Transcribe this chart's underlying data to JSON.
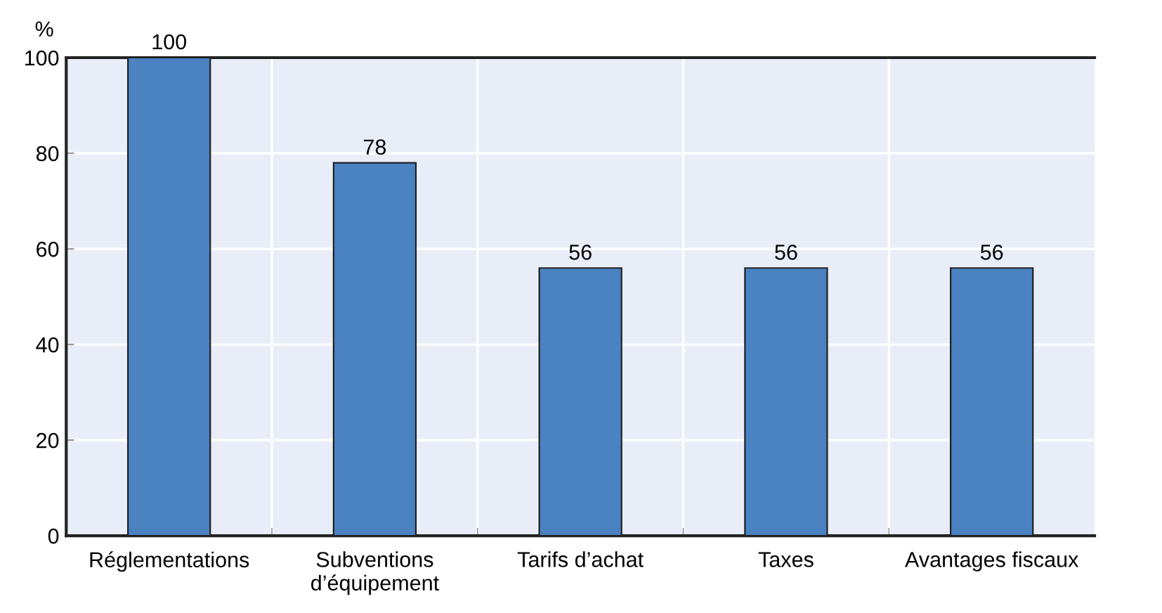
{
  "chart_data": {
    "type": "bar",
    "ylabel": "%",
    "categories": [
      "Réglementations",
      "Subventions\nd’équipement",
      "Tarifs d’achat",
      "Taxes",
      "Avantages fiscaux"
    ],
    "values": [
      100,
      78,
      56,
      56,
      56
    ],
    "color": "#4a82c2",
    "ylim": [
      0,
      100
    ],
    "yticks": [
      0,
      20,
      40,
      60,
      80,
      100
    ],
    "grid": true,
    "data_labels": true
  }
}
